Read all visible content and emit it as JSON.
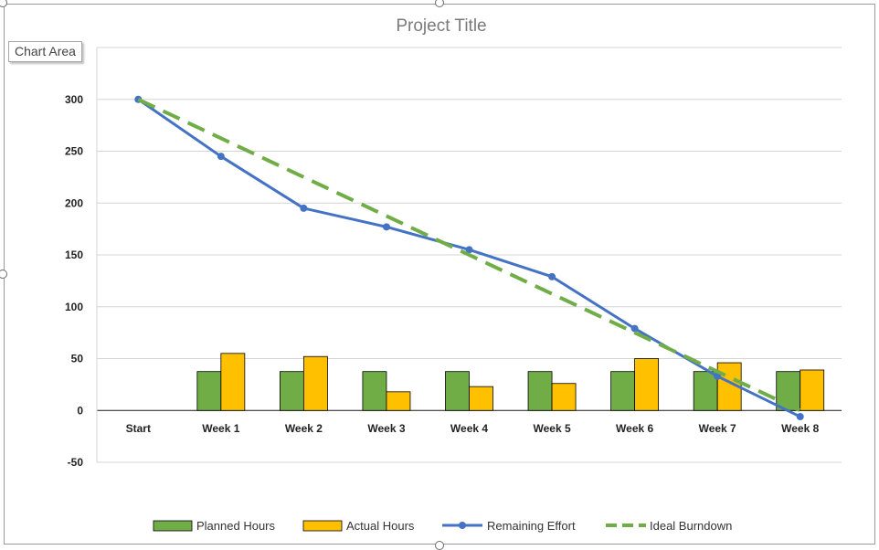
{
  "tooltip": {
    "label": "Chart Area"
  },
  "chart_data": {
    "type": "bar",
    "title": "Project Title",
    "categories": [
      "Start",
      "Week 1",
      "Week 2",
      "Week 3",
      "Week 4",
      "Week 5",
      "Week 6",
      "Week 7",
      "Week 8"
    ],
    "ylim": [
      -50,
      350
    ],
    "yticks": [
      -50,
      0,
      50,
      100,
      150,
      200,
      250,
      300
    ],
    "grid": true,
    "legend_position": "bottom",
    "series": [
      {
        "name": "Planned Hours",
        "type": "bar",
        "color": "#70ad47",
        "values": [
          null,
          37.5,
          37.5,
          37.5,
          37.5,
          37.5,
          37.5,
          37.5,
          37.5
        ]
      },
      {
        "name": "Actual Hours",
        "type": "bar",
        "color": "#ffc000",
        "values": [
          null,
          55,
          52,
          18,
          23,
          26,
          50,
          46,
          39
        ]
      },
      {
        "name": "Remaining Effort",
        "type": "line",
        "color": "#4472c4",
        "markers": true,
        "values": [
          300,
          245,
          195,
          177,
          155,
          129,
          79,
          33,
          -6
        ]
      },
      {
        "name": "Ideal Burndown",
        "type": "line",
        "color": "#70ad47",
        "dashed": true,
        "values": [
          300,
          262.5,
          225,
          187.5,
          150,
          112.5,
          75,
          37.5,
          0
        ]
      }
    ]
  }
}
